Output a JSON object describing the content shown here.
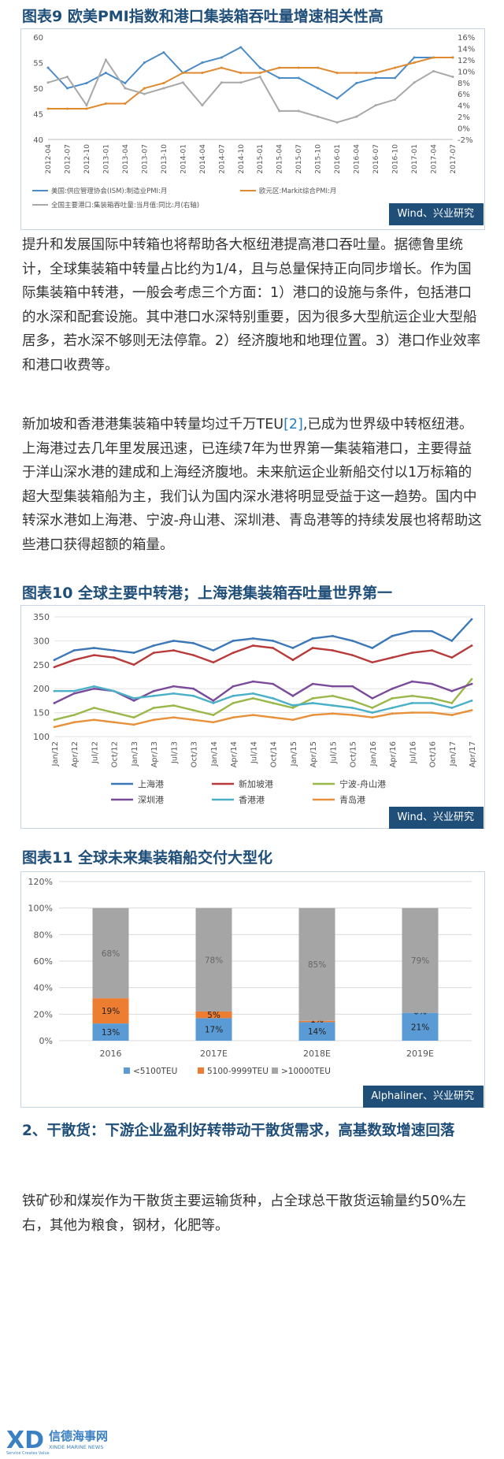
{
  "fig9": {
    "title": "图表9  欧美PMI指数和港口集装箱吞吐量增速相关性高",
    "source": "Wind、兴业研究",
    "legend": [
      "美国:供应管理协会(ISM):制造业PMI:月",
      "欧元区:Markit综合PMI:月",
      "全国主要港口:集装箱吞吐量:当月值:同比:月(右轴)"
    ],
    "colors": [
      "#4a8cc8",
      "#e08a30",
      "#a8a8a8"
    ],
    "chart_data": {
      "type": "line",
      "x": [
        "2012-04",
        "2012-07",
        "2012-10",
        "2013-01",
        "2013-04",
        "2013-07",
        "2013-10",
        "2014-01",
        "2014-04",
        "2014-07",
        "2014-10",
        "2015-01",
        "2015-04",
        "2015-07",
        "2015-10",
        "2016-01",
        "2016-04",
        "2016-07",
        "2016-10",
        "2017-01",
        "2017-04",
        "2017-07"
      ],
      "series": [
        {
          "name": "美国:供应管理协会(ISM):制造业PMI:月",
          "axis": "left",
          "values": [
            54,
            50,
            51,
            53,
            51,
            55,
            57,
            53,
            55,
            56,
            58,
            54,
            52,
            52,
            50,
            48,
            51,
            52,
            52,
            56,
            56,
            56
          ]
        },
        {
          "name": "欧元区:Markit综合PMI:月",
          "axis": "left",
          "values": [
            46,
            46,
            46,
            47,
            47,
            50,
            51,
            53,
            53,
            54,
            53,
            53,
            54,
            54,
            54,
            53,
            53,
            53,
            54,
            55,
            56,
            56
          ]
        },
        {
          "name": "全国主要港口:集装箱吞吐量:当月值:同比:月(右轴)",
          "axis": "right",
          "values": [
            8,
            9,
            4,
            12,
            7,
            6,
            7,
            8,
            4,
            8,
            8,
            9,
            3,
            3,
            2,
            1,
            2,
            4,
            5,
            8,
            10,
            9
          ]
        }
      ],
      "yleft_ticks": [
        "60",
        "55",
        "50",
        "45",
        "40"
      ],
      "yright_ticks": [
        "16%",
        "14%",
        "12%",
        "10%",
        "8%",
        "6%",
        "4%",
        "2%",
        "0%",
        "-2%"
      ],
      "ylim_left": [
        40,
        60
      ],
      "ylim_right": [
        -2,
        16
      ]
    }
  },
  "para1": "提升和发展国际中转箱也将帮助各大枢纽港提高港口吞吐量。据德鲁里统计，全球集装箱中转量占比约为1/4，且与总量保持正向同步增长。作为国际集装箱中转港，一般会考虑三个方面：1）港口的设施与条件，包括港口的水深和配套设施。其中港口水深特别重要，因为很多大型航运企业大型船居多，若水深不够则无法停靠。2）经济腹地和地理位置。3）港口作业效率和港口收费等。",
  "para2": {
    "before_ref": "新加坡和香港港集装箱中转量均过千万TEU",
    "ref": "[2]",
    "after_ref": ",已成为世界级中转枢纽港。上海港过去几年里发展迅速，已连续7年为世界第一集装箱港口，主要得益于洋山深水港的建成和上海经济腹地。未来航运企业新船交付以1万标箱的超大型集装箱船为主，我们认为国内深水港将明显受益于这一趋势。国内中转深水港如上海港、宁波-舟山港、深圳港、青岛港等的持续发展也将帮助这些港口获得超额的箱量。"
  },
  "fig10": {
    "title": "图表10  全球主要中转港；上海港集装箱吞吐量世界第一",
    "source": "Wind、兴业研究",
    "legend": [
      "上海港",
      "新加坡港",
      "宁波-舟山港",
      "深圳港",
      "香港港",
      "青岛港"
    ],
    "colors": [
      "#3c78b8",
      "#b83a3a",
      "#9ab84a",
      "#7a4a9a",
      "#4ab0c8",
      "#e8903a"
    ],
    "chart_data": {
      "type": "line",
      "x": [
        "Jan/12",
        "Apr/12",
        "Jul/12",
        "Oct/12",
        "Jan/13",
        "Apr/13",
        "Jul/13",
        "Oct/13",
        "Jan/14",
        "Apr/14",
        "Jul/14",
        "Oct/14",
        "Jan/15",
        "Apr/15",
        "Jul/15",
        "Oct/15",
        "Jan/16",
        "Apr/16",
        "Jul/16",
        "Oct/16",
        "Jan/17",
        "Apr/17"
      ],
      "series": [
        {
          "name": "上海港",
          "values": [
            260,
            280,
            285,
            280,
            275,
            290,
            300,
            295,
            280,
            300,
            305,
            300,
            285,
            305,
            310,
            300,
            285,
            310,
            320,
            320,
            300,
            345
          ]
        },
        {
          "name": "新加坡港",
          "values": [
            245,
            260,
            270,
            265,
            250,
            275,
            280,
            270,
            255,
            275,
            290,
            285,
            260,
            285,
            280,
            270,
            255,
            265,
            275,
            280,
            265,
            290
          ]
        },
        {
          "name": "宁波-舟山港",
          "values": [
            135,
            145,
            160,
            150,
            140,
            160,
            165,
            155,
            145,
            170,
            180,
            170,
            160,
            180,
            185,
            175,
            160,
            180,
            185,
            180,
            170,
            220
          ]
        },
        {
          "name": "深圳港",
          "values": [
            170,
            190,
            200,
            195,
            175,
            195,
            205,
            200,
            175,
            205,
            215,
            210,
            185,
            210,
            205,
            205,
            180,
            200,
            215,
            210,
            195,
            210
          ]
        },
        {
          "name": "香港港",
          "values": [
            195,
            195,
            205,
            195,
            180,
            185,
            190,
            185,
            170,
            185,
            190,
            180,
            165,
            170,
            165,
            160,
            150,
            160,
            170,
            170,
            160,
            175
          ]
        },
        {
          "name": "青岛港",
          "values": [
            120,
            130,
            135,
            130,
            125,
            135,
            140,
            135,
            130,
            140,
            145,
            140,
            135,
            145,
            148,
            145,
            140,
            148,
            150,
            150,
            145,
            155
          ]
        }
      ],
      "y_ticks": [
        "350",
        "300",
        "250",
        "200",
        "150",
        "100"
      ],
      "ylim": [
        100,
        350
      ]
    }
  },
  "fig11": {
    "title": "图表11  全球未来集装箱船交付大型化",
    "source": "Alphaliner、兴业研究",
    "legend": [
      "<5100TEU",
      "5100-9999TEU",
      ">10000TEU"
    ],
    "colors": [
      "#5b9bd5",
      "#ed7d31",
      "#a5a5a5"
    ],
    "chart_data": {
      "type": "bar",
      "stacked": true,
      "categories": [
        "2016",
        "2017E",
        "2018E",
        "2019E"
      ],
      "series": [
        {
          "name": "<5100TEU",
          "values": [
            13,
            17,
            14,
            21
          ],
          "labels": [
            "13%",
            "17%",
            "14%",
            "21%"
          ]
        },
        {
          "name": "5100-9999TEU",
          "values": [
            19,
            5,
            1,
            0
          ],
          "labels": [
            "19%",
            "5%",
            "1%",
            "0%"
          ]
        },
        {
          "name": ">10000TEU",
          "values": [
            68,
            78,
            85,
            79
          ],
          "labels": [
            "68%",
            "78%",
            "85%",
            "79%"
          ]
        }
      ],
      "y_ticks": [
        "120%",
        "100%",
        "80%",
        "60%",
        "40%",
        "20%",
        "0%"
      ],
      "ylim": [
        0,
        120
      ]
    }
  },
  "section2_heading": "2、干散货：下游企业盈利好转带动干散货需求，高基数致增速回落",
  "para3": "铁矿砂和煤炭作为干散货主要运输货种，占全球总干散货运输量约50%左右，其他为粮食，钢材，化肥等。",
  "logo": {
    "text": "信德海事网",
    "sub": "XINDE MARINE NEWS",
    "tag": "Service Creates Value"
  }
}
